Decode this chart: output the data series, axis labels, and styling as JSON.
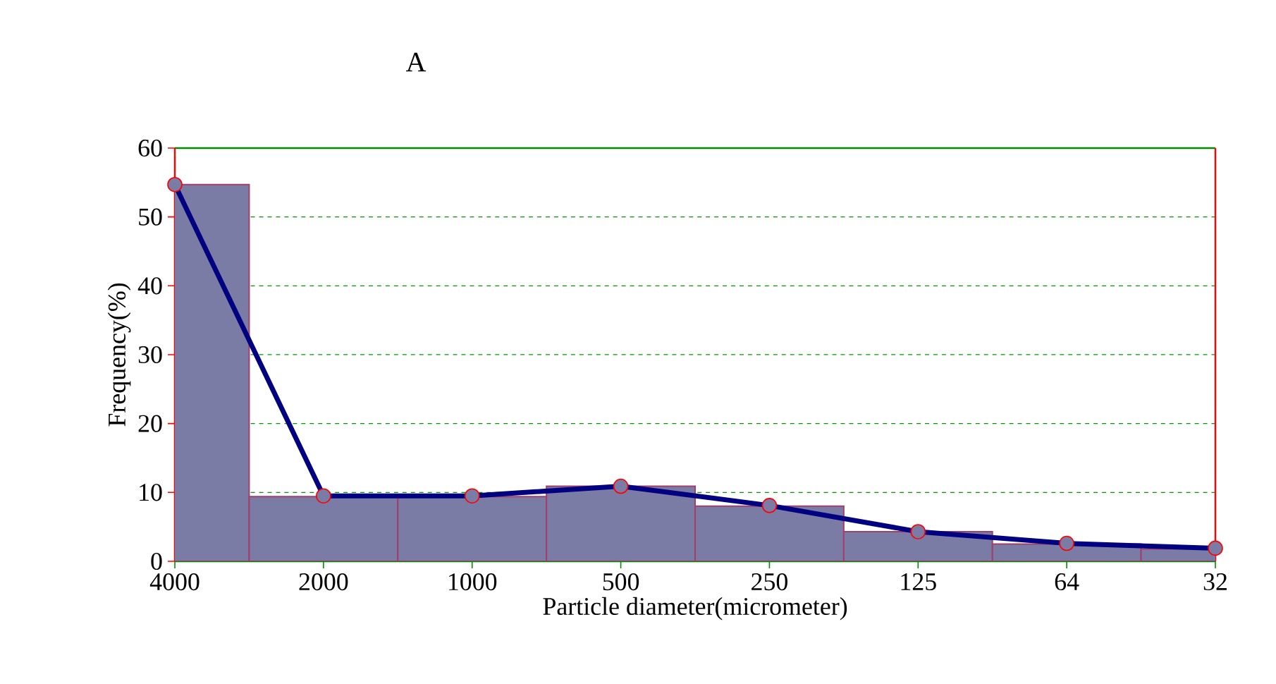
{
  "chart_data": {
    "type": "bar",
    "title": "A",
    "xlabel": "Particle diameter(micrometer)",
    "ylabel": "Frequency(%)",
    "categories": [
      "4000",
      "2000",
      "1000",
      "500",
      "250",
      "125",
      "64",
      "32"
    ],
    "series": [
      {
        "color": "#7b7ca6",
        "values": [
          54.7,
          9.4,
          9.4,
          10.9,
          8.0,
          4.3,
          2.5,
          1.8
        ]
      },
      {
        "type": "line",
        "color": "#000080",
        "marker": "circle",
        "values": [
          54.7,
          9.5,
          9.5,
          10.9,
          8.1,
          4.3,
          2.6,
          1.9
        ]
      }
    ],
    "ylim": [
      0,
      60
    ],
    "yticks": [
      0,
      10,
      20,
      30,
      40,
      50,
      60
    ],
    "grid": "y"
  }
}
